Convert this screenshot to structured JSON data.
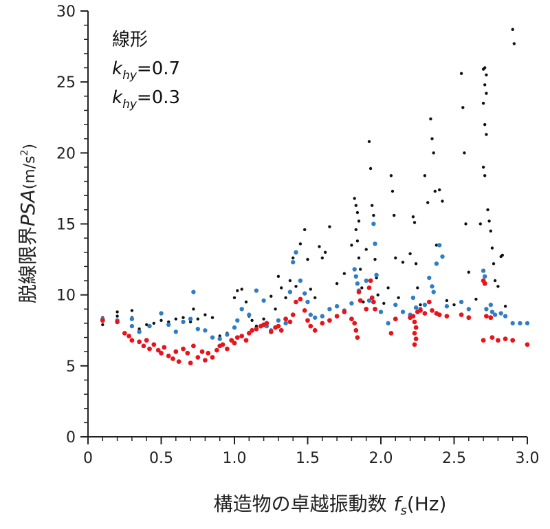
{
  "chart_data": {
    "type": "scatter",
    "title": "",
    "xlabel": {
      "main": "構造物の卓越振動数",
      "var": "f",
      "sub": "s",
      "unit": "(Hz)"
    },
    "ylabel": {
      "main": "脱線限界",
      "var": "PSA",
      "unit_open": "(m/s",
      "unit_sup": "2",
      "unit_close": ")"
    },
    "xlim": [
      0,
      3.0
    ],
    "ylim": [
      0,
      30
    ],
    "xticks": [
      "0",
      "0.5",
      "1.0",
      "1.5",
      "2.0",
      "2.5",
      "3.0"
    ],
    "yticks": [
      "0",
      "5",
      "10",
      "15",
      "20",
      "25",
      "30"
    ],
    "grid": false,
    "legend": {
      "placement": "top-left",
      "entries": [
        {
          "text": "線形"
        },
        {
          "var": "k",
          "sub": "hy",
          "value": "=0.7"
        },
        {
          "var": "k",
          "sub": "hy",
          "value": "=0.3"
        }
      ]
    },
    "series": [
      {
        "color": "#111111",
        "radius": 2.2,
        "points": [
          [
            0.1,
            8.4
          ],
          [
            0.1,
            7.9
          ],
          [
            0.2,
            8.5
          ],
          [
            0.2,
            8.8
          ],
          [
            0.3,
            8.9
          ],
          [
            0.3,
            8.4
          ],
          [
            0.35,
            7.6
          ],
          [
            0.4,
            7.9
          ],
          [
            0.45,
            8.0
          ],
          [
            0.5,
            8.2
          ],
          [
            0.55,
            8.1
          ],
          [
            0.6,
            8.3
          ],
          [
            0.65,
            8.4
          ],
          [
            0.7,
            8.1
          ],
          [
            0.72,
            9.0
          ],
          [
            0.75,
            8.3
          ],
          [
            0.8,
            8.6
          ],
          [
            0.85,
            8.4
          ],
          [
            0.9,
            7.1
          ],
          [
            0.95,
            7.3
          ],
          [
            1.0,
            9.8
          ],
          [
            1.02,
            10.3
          ],
          [
            1.05,
            10.4
          ],
          [
            1.08,
            9.5
          ],
          [
            1.1,
            8.5
          ],
          [
            1.12,
            8.2
          ],
          [
            1.15,
            7.8
          ],
          [
            1.2,
            8.3
          ],
          [
            1.25,
            9.9
          ],
          [
            1.28,
            9.0
          ],
          [
            1.3,
            11.3
          ],
          [
            1.32,
            10.5
          ],
          [
            1.35,
            9.8
          ],
          [
            1.38,
            11.0
          ],
          [
            1.4,
            12.6
          ],
          [
            1.42,
            10.6
          ],
          [
            1.45,
            13.6
          ],
          [
            1.48,
            14.6
          ],
          [
            1.5,
            12.5
          ],
          [
            1.52,
            10.4
          ],
          [
            1.55,
            9.8
          ],
          [
            1.58,
            13.4
          ],
          [
            1.6,
            12.6
          ],
          [
            1.62,
            13.0
          ],
          [
            1.65,
            14.8
          ],
          [
            1.7,
            10.8
          ],
          [
            1.75,
            11.5
          ],
          [
            1.8,
            13.5
          ],
          [
            1.82,
            16.8
          ],
          [
            1.83,
            16.3
          ],
          [
            1.84,
            15.8
          ],
          [
            1.85,
            15.2
          ],
          [
            1.83,
            14.6
          ],
          [
            1.84,
            13.8
          ],
          [
            1.85,
            12.6
          ],
          [
            1.86,
            11.8
          ],
          [
            1.87,
            10.5
          ],
          [
            1.88,
            9.5
          ],
          [
            1.9,
            13.2
          ],
          [
            1.92,
            20.8
          ],
          [
            1.93,
            18.9
          ],
          [
            1.94,
            16.3
          ],
          [
            1.95,
            15.6
          ],
          [
            1.96,
            12.5
          ],
          [
            1.97,
            11.2
          ],
          [
            1.98,
            10.0
          ],
          [
            2.02,
            9.4
          ],
          [
            2.05,
            10.5
          ],
          [
            2.07,
            18.4
          ],
          [
            2.08,
            17.3
          ],
          [
            2.09,
            15.6
          ],
          [
            2.1,
            12.6
          ],
          [
            2.12,
            9.8
          ],
          [
            2.15,
            12.3
          ],
          [
            2.2,
            12.9
          ],
          [
            2.22,
            15.5
          ],
          [
            2.23,
            15.1
          ],
          [
            2.24,
            12.2
          ],
          [
            2.25,
            10.5
          ],
          [
            2.27,
            9.3
          ],
          [
            2.3,
            18.4
          ],
          [
            2.32,
            16.5
          ],
          [
            2.34,
            22.4
          ],
          [
            2.35,
            21.0
          ],
          [
            2.36,
            20.0
          ],
          [
            2.37,
            17.3
          ],
          [
            2.38,
            13.5
          ],
          [
            2.4,
            17.4
          ],
          [
            2.42,
            16.6
          ],
          [
            2.45,
            9.6
          ],
          [
            2.5,
            9.3
          ],
          [
            2.55,
            25.6
          ],
          [
            2.56,
            23.2
          ],
          [
            2.57,
            20.0
          ],
          [
            2.58,
            15.0
          ],
          [
            2.6,
            11.6
          ],
          [
            2.65,
            9.7
          ],
          [
            2.68,
            15.0
          ],
          [
            2.7,
            25.9
          ],
          [
            2.71,
            26.0
          ],
          [
            2.72,
            25.5
          ],
          [
            2.71,
            24.8
          ],
          [
            2.72,
            24.2
          ],
          [
            2.7,
            23.5
          ],
          [
            2.71,
            22.0
          ],
          [
            2.72,
            21.3
          ],
          [
            2.7,
            19.0
          ],
          [
            2.71,
            18.4
          ],
          [
            2.73,
            16.0
          ],
          [
            2.74,
            15.2
          ],
          [
            2.75,
            14.5
          ],
          [
            2.76,
            13.3
          ],
          [
            2.77,
            12.2
          ],
          [
            2.78,
            11.0
          ],
          [
            2.8,
            10.6
          ],
          [
            2.82,
            12.7
          ],
          [
            2.83,
            12.8
          ],
          [
            2.85,
            9.2
          ],
          [
            2.9,
            28.7
          ],
          [
            2.91,
            27.7
          ]
        ]
      },
      {
        "color": "#2f7ec4",
        "radius": 3.2,
        "points": [
          [
            0.1,
            8.3
          ],
          [
            0.2,
            8.2
          ],
          [
            0.3,
            8.3
          ],
          [
            0.3,
            7.8
          ],
          [
            0.35,
            7.4
          ],
          [
            0.42,
            7.8
          ],
          [
            0.5,
            8.7
          ],
          [
            0.55,
            7.9
          ],
          [
            0.6,
            7.4
          ],
          [
            0.65,
            8.1
          ],
          [
            0.7,
            8.3
          ],
          [
            0.72,
            10.2
          ],
          [
            0.75,
            7.6
          ],
          [
            0.8,
            7.5
          ],
          [
            0.85,
            7.0
          ],
          [
            0.9,
            6.9
          ],
          [
            0.95,
            7.2
          ],
          [
            1.0,
            7.7
          ],
          [
            1.02,
            8.2
          ],
          [
            1.05,
            9.0
          ],
          [
            1.1,
            8.6
          ],
          [
            1.15,
            10.3
          ],
          [
            1.2,
            9.6
          ],
          [
            1.22,
            7.8
          ],
          [
            1.25,
            7.5
          ],
          [
            1.3,
            8.2
          ],
          [
            1.35,
            8.0
          ],
          [
            1.38,
            10.2
          ],
          [
            1.4,
            12.3
          ],
          [
            1.42,
            13.0
          ],
          [
            1.45,
            11.0
          ],
          [
            1.48,
            10.1
          ],
          [
            1.5,
            9.5
          ],
          [
            1.52,
            8.6
          ],
          [
            1.55,
            8.4
          ],
          [
            1.6,
            8.5
          ],
          [
            1.65,
            9.0
          ],
          [
            1.7,
            9.2
          ],
          [
            1.75,
            8.9
          ],
          [
            1.8,
            9.4
          ],
          [
            1.82,
            11.8
          ],
          [
            1.83,
            11.3
          ],
          [
            1.84,
            10.8
          ],
          [
            1.85,
            10.3
          ],
          [
            1.86,
            9.6
          ],
          [
            1.9,
            11.0
          ],
          [
            1.92,
            9.6
          ],
          [
            1.95,
            15.0
          ],
          [
            1.96,
            13.6
          ],
          [
            1.97,
            11.4
          ],
          [
            2.0,
            8.8
          ],
          [
            2.05,
            8.0
          ],
          [
            2.1,
            9.3
          ],
          [
            2.15,
            8.8
          ],
          [
            2.2,
            8.6
          ],
          [
            2.22,
            9.8
          ],
          [
            2.24,
            9.1
          ],
          [
            2.27,
            9.0
          ],
          [
            2.3,
            9.3
          ],
          [
            2.33,
            11.2
          ],
          [
            2.35,
            10.6
          ],
          [
            2.36,
            10.2
          ],
          [
            2.38,
            12.2
          ],
          [
            2.4,
            13.5
          ],
          [
            2.42,
            12.7
          ],
          [
            2.45,
            9.2
          ],
          [
            2.55,
            9.5
          ],
          [
            2.6,
            9.0
          ],
          [
            2.7,
            11.7
          ],
          [
            2.71,
            11.3
          ],
          [
            2.72,
            9.0
          ],
          [
            2.75,
            9.3
          ],
          [
            2.76,
            8.8
          ],
          [
            2.78,
            8.6
          ],
          [
            2.82,
            8.7
          ],
          [
            2.85,
            8.5
          ],
          [
            2.9,
            8.0
          ],
          [
            2.95,
            8.0
          ],
          [
            3.0,
            8.0
          ]
        ]
      },
      {
        "color": "#e8141c",
        "radius": 3.4,
        "points": [
          [
            0.1,
            8.2
          ],
          [
            0.2,
            8.1
          ],
          [
            0.25,
            7.3
          ],
          [
            0.28,
            7.1
          ],
          [
            0.3,
            6.8
          ],
          [
            0.35,
            6.7
          ],
          [
            0.38,
            6.4
          ],
          [
            0.4,
            6.8
          ],
          [
            0.42,
            6.2
          ],
          [
            0.45,
            6.5
          ],
          [
            0.48,
            6.1
          ],
          [
            0.5,
            5.9
          ],
          [
            0.52,
            6.3
          ],
          [
            0.55,
            5.7
          ],
          [
            0.58,
            5.5
          ],
          [
            0.6,
            6.0
          ],
          [
            0.62,
            5.3
          ],
          [
            0.65,
            6.2
          ],
          [
            0.68,
            5.9
          ],
          [
            0.7,
            5.2
          ],
          [
            0.72,
            6.4
          ],
          [
            0.75,
            5.6
          ],
          [
            0.78,
            6.0
          ],
          [
            0.8,
            5.4
          ],
          [
            0.82,
            5.9
          ],
          [
            0.85,
            5.6
          ],
          [
            0.88,
            6.1
          ],
          [
            0.9,
            6.4
          ],
          [
            0.92,
            6.5
          ],
          [
            0.95,
            6.2
          ],
          [
            0.98,
            6.8
          ],
          [
            1.0,
            6.6
          ],
          [
            1.02,
            7.0
          ],
          [
            1.05,
            7.1
          ],
          [
            1.08,
            6.8
          ],
          [
            1.1,
            7.3
          ],
          [
            1.12,
            7.5
          ],
          [
            1.15,
            7.6
          ],
          [
            1.18,
            7.8
          ],
          [
            1.2,
            7.9
          ],
          [
            1.22,
            8.0
          ],
          [
            1.25,
            7.4
          ],
          [
            1.28,
            7.7
          ],
          [
            1.3,
            7.8
          ],
          [
            1.32,
            7.5
          ],
          [
            1.35,
            8.3
          ],
          [
            1.38,
            8.1
          ],
          [
            1.4,
            8.6
          ],
          [
            1.42,
            9.5
          ],
          [
            1.45,
            9.7
          ],
          [
            1.48,
            8.9
          ],
          [
            1.5,
            8.2
          ],
          [
            1.52,
            7.8
          ],
          [
            1.55,
            7.5
          ],
          [
            1.6,
            8.0
          ],
          [
            1.65,
            8.2
          ],
          [
            1.7,
            8.5
          ],
          [
            1.75,
            8.8
          ],
          [
            1.8,
            8.3
          ],
          [
            1.82,
            8.0
          ],
          [
            1.83,
            7.5
          ],
          [
            1.84,
            7.0
          ],
          [
            1.85,
            10.2
          ],
          [
            1.86,
            9.6
          ],
          [
            1.9,
            9.0
          ],
          [
            1.92,
            10.5
          ],
          [
            1.93,
            11.0
          ],
          [
            1.94,
            9.8
          ],
          [
            1.95,
            9.5
          ],
          [
            1.96,
            9.0
          ],
          [
            2.07,
            7.3
          ],
          [
            2.1,
            8.3
          ],
          [
            2.2,
            8.4
          ],
          [
            2.22,
            8.5
          ],
          [
            2.23,
            8.1
          ],
          [
            2.24,
            7.7
          ],
          [
            2.23,
            7.3
          ],
          [
            2.24,
            6.9
          ],
          [
            2.23,
            6.5
          ],
          [
            2.25,
            8.8
          ],
          [
            2.27,
            8.9
          ],
          [
            2.3,
            8.7
          ],
          [
            2.33,
            9.5
          ],
          [
            2.35,
            8.9
          ],
          [
            2.38,
            8.7
          ],
          [
            2.4,
            8.6
          ],
          [
            2.45,
            8.5
          ],
          [
            2.55,
            8.6
          ],
          [
            2.6,
            8.4
          ],
          [
            2.7,
            11.0
          ],
          [
            2.71,
            10.8
          ],
          [
            2.7,
            6.8
          ],
          [
            2.72,
            8.5
          ],
          [
            2.75,
            8.4
          ],
          [
            2.76,
            7.0
          ],
          [
            2.8,
            6.8
          ],
          [
            2.85,
            6.9
          ],
          [
            2.9,
            6.8
          ],
          [
            3.0,
            6.5
          ]
        ]
      }
    ]
  }
}
